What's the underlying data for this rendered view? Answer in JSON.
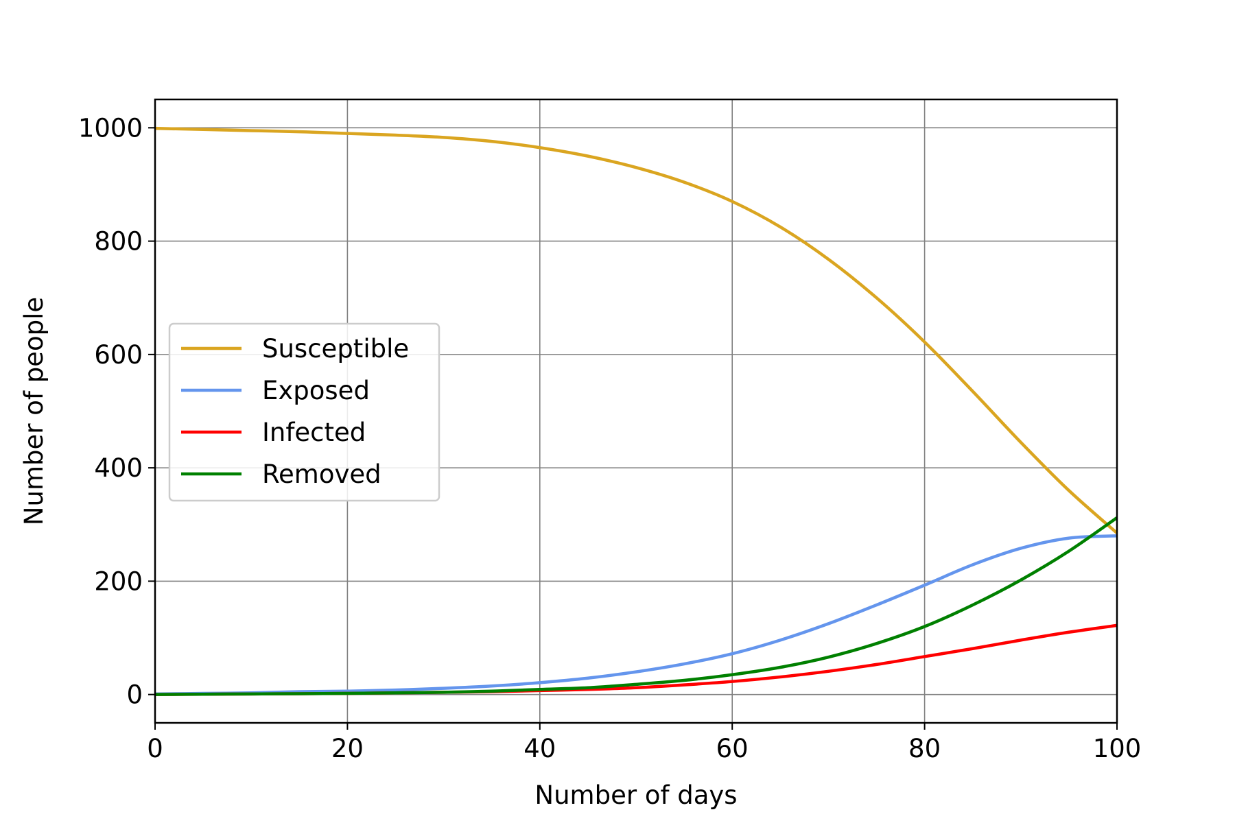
{
  "chart_data": {
    "type": "line",
    "title": "",
    "xlabel": "Number of days",
    "ylabel": "Number of people",
    "xlim": [
      0,
      100
    ],
    "ylim": [
      -50,
      1050
    ],
    "xticks": [
      0,
      20,
      40,
      60,
      80,
      100
    ],
    "yticks": [
      0,
      200,
      400,
      600,
      800,
      1000
    ],
    "xtick_labels": [
      "0",
      "20",
      "40",
      "60",
      "80",
      "100"
    ],
    "ytick_labels": [
      "0",
      "200",
      "400",
      "600",
      "800",
      "1000"
    ],
    "grid": true,
    "legend_position": "center-left",
    "x": [
      0,
      5,
      10,
      15,
      20,
      25,
      30,
      35,
      40,
      45,
      50,
      55,
      60,
      65,
      70,
      75,
      80,
      85,
      90,
      95,
      100
    ],
    "series": [
      {
        "name": "Susceptible",
        "color": "#DAA520",
        "values": [
          999,
          997,
          995,
          993,
          990,
          987,
          983,
          976,
          965,
          950,
          930,
          904,
          870,
          825,
          768,
          700,
          622,
          535,
          445,
          360,
          285
        ]
      },
      {
        "name": "Exposed",
        "color": "#6495ED",
        "values": [
          1,
          2,
          3,
          5,
          6,
          8,
          11,
          15,
          21,
          29,
          40,
          54,
          72,
          96,
          125,
          158,
          193,
          229,
          258,
          276,
          280
        ]
      },
      {
        "name": "Infected",
        "color": "#FF0000",
        "values": [
          0,
          0.5,
          1,
          1.5,
          2,
          3,
          4,
          5,
          7,
          9,
          12,
          17,
          23,
          31,
          41,
          53,
          67,
          81,
          96,
          110,
          122
        ]
      },
      {
        "name": "Removed",
        "color": "#008000",
        "values": [
          0,
          0.5,
          1,
          1.5,
          2,
          3,
          4,
          6,
          9,
          12,
          18,
          25,
          35,
          48,
          66,
          90,
          120,
          158,
          202,
          253,
          312
        ]
      }
    ]
  }
}
